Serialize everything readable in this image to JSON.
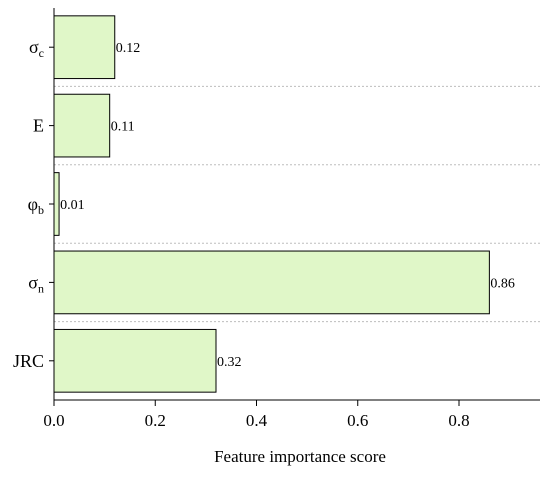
{
  "chart_data": {
    "type": "bar",
    "orientation": "horizontal",
    "categories": [
      {
        "base": "σ",
        "sub": "c"
      },
      {
        "base": "E",
        "sub": ""
      },
      {
        "base": "φ",
        "sub": "b"
      },
      {
        "base": "σ",
        "sub": "n"
      },
      {
        "base": "JRC",
        "sub": ""
      }
    ],
    "values": [
      0.12,
      0.11,
      0.01,
      0.86,
      0.32
    ],
    "value_labels": [
      "0.12",
      "0.11",
      "0.01",
      "0.86",
      "0.32"
    ],
    "title": "",
    "xlabel": "Feature importance score",
    "ylabel": "",
    "xlim": [
      0,
      0.96
    ],
    "xticks": [
      0.0,
      0.2,
      0.4,
      0.6,
      0.8
    ],
    "xtick_labels": [
      "0.0",
      "0.2",
      "0.4",
      "0.6",
      "0.8"
    ],
    "grid": "horizontal dotted separators between categories",
    "legend": "none",
    "colors": {
      "bar_fill": "#e0f7c8",
      "bar_stroke": "#000000",
      "grid": "#bdbdbd"
    }
  }
}
